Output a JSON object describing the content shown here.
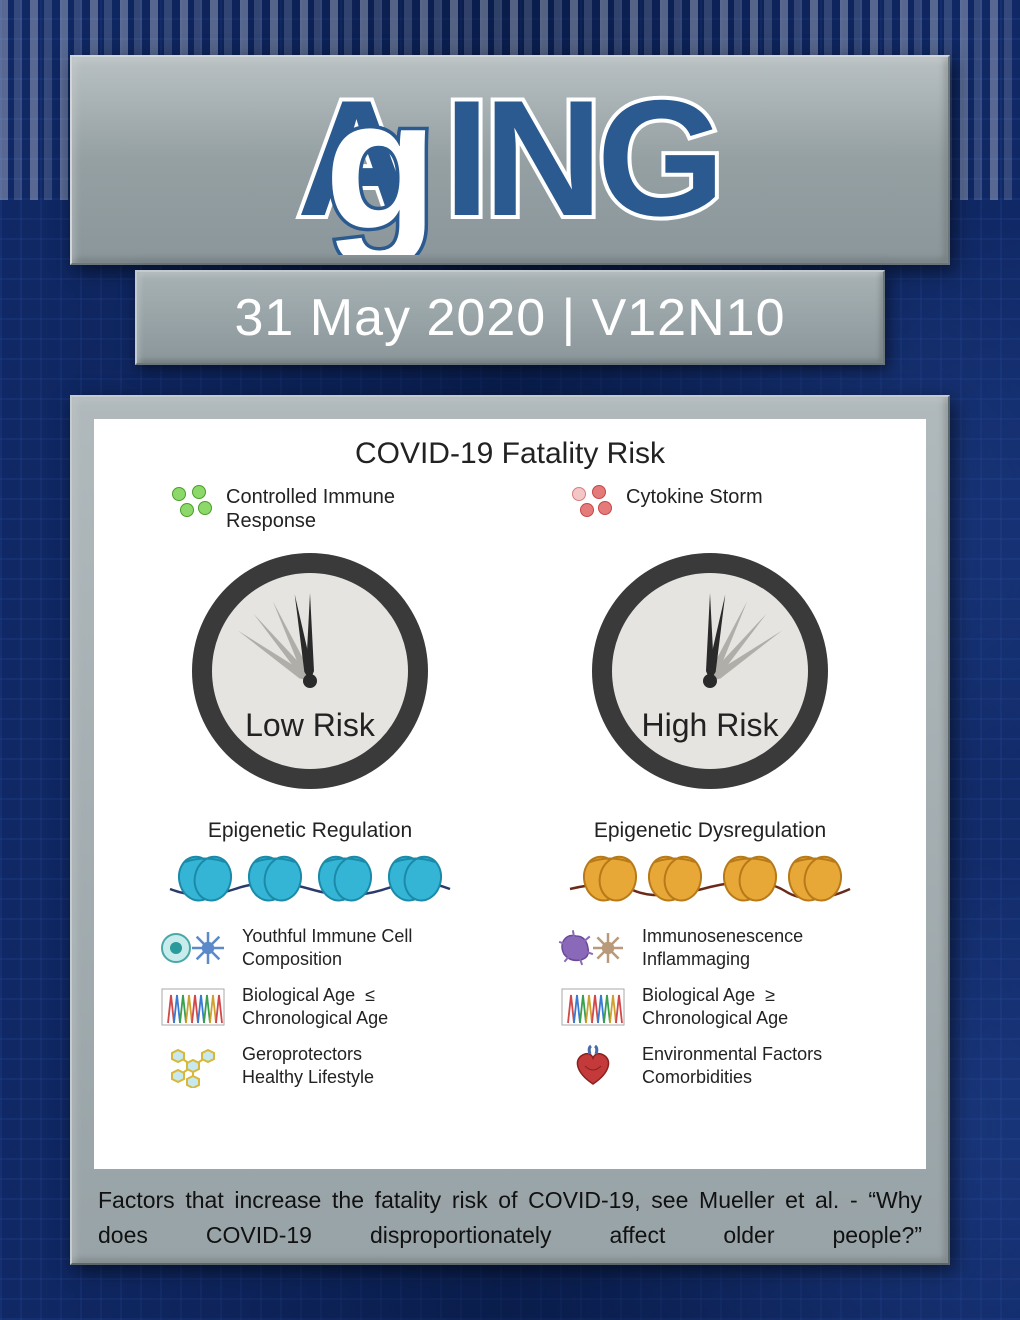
{
  "journal_title": "AgING",
  "subtitle": "31 May 2020 | V12N10",
  "card": {
    "title": "COVID-19 Fatality Risk",
    "left": {
      "immune_label": "Controlled Immune Response",
      "dot_color_fill": "#8cd96a",
      "dot_color_border": "#4a9e2a",
      "gauge_label": "Low Risk",
      "needle_angles_gray": [
        -55,
        -40,
        -25
      ],
      "needle_angles_black": [
        -10,
        0
      ],
      "epi_title": "Epigenetic Regulation",
      "disc_color": "#35b5d6",
      "disc_color_dark": "#1a8aa8",
      "disc_thread": "#2a3a6a",
      "factors": [
        {
          "text": "Youthful Immune Cell Composition",
          "icon": "immune-cell-left"
        },
        {
          "text": "Biological Age  ≤ Chronological Age",
          "icon": "dna-peaks"
        },
        {
          "text": "Geroprotectors Healthy Lifestyle",
          "icon": "molecule"
        }
      ]
    },
    "right": {
      "immune_label": "Cytokine Storm",
      "dot_color_fill": "#e57a7a",
      "dot_color_border": "#c44848",
      "gauge_label": "High Risk",
      "needle_angles_gray": [
        25,
        40,
        55
      ],
      "needle_angles_black": [
        0,
        10
      ],
      "epi_title": "Epigenetic Dysregulation",
      "disc_color": "#e8a838",
      "disc_color_dark": "#b87a18",
      "disc_thread": "#6a2a1a",
      "factors": [
        {
          "text": "Immunosenescence Inflammaging",
          "icon": "immune-cell-right"
        },
        {
          "text": "Biological Age  ≥ Chronological Age",
          "icon": "dna-peaks"
        },
        {
          "text": "Environmental Factors Comorbidities",
          "icon": "heart"
        }
      ]
    }
  },
  "caption": "Factors that increase the fatality risk of COVID-19, see Mueller et al. - “Why does COVID-19 disproportionately affect older people?”",
  "colors": {
    "title_blue": "#2a5a8f",
    "banner_gray": "#95a0a3",
    "gauge_ring": "#3a3a3a",
    "gauge_face": "#e6e4e0"
  }
}
